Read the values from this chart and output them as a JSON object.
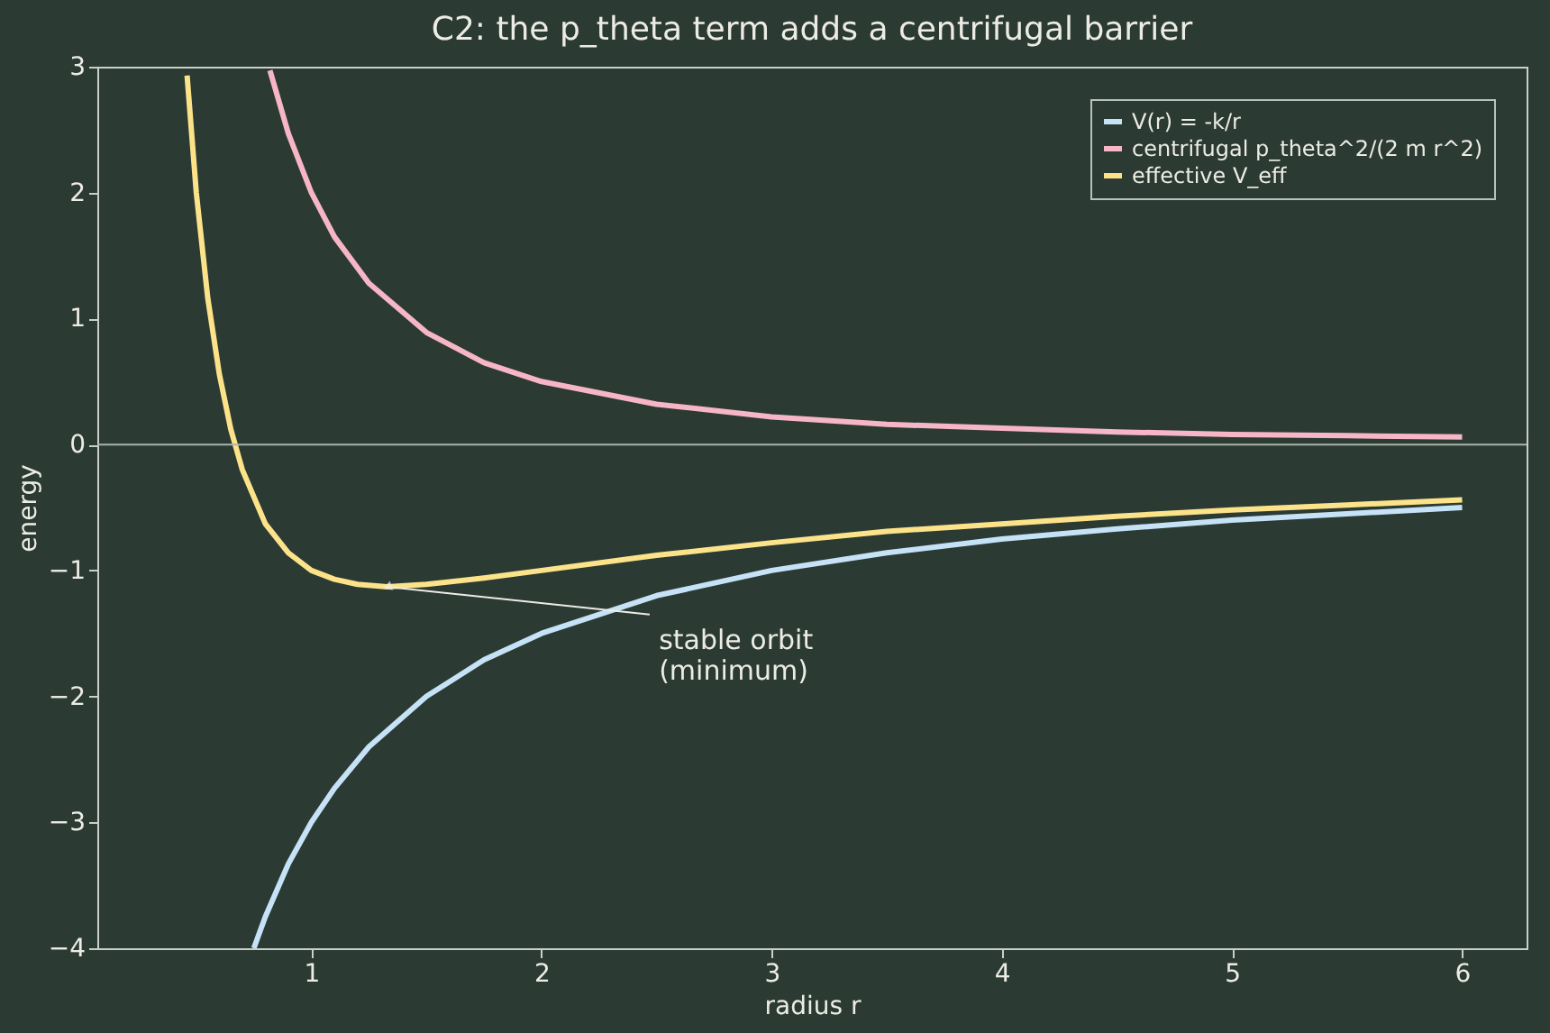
{
  "chart_data": {
    "type": "line",
    "title": "C2: the p_theta term adds a centrifugal barrier",
    "xlabel": "radius  r",
    "ylabel": "energy",
    "xlim": [
      0.07,
      6.28
    ],
    "xticks": [
      1,
      2,
      3,
      4,
      5,
      6
    ],
    "ylim": [
      -4,
      3
    ],
    "yticks": [
      -4,
      -3,
      -2,
      -1,
      0,
      1,
      2,
      3
    ],
    "grid": false,
    "legend": "top right",
    "line_style": "solid",
    "marker": "none",
    "series": [
      {
        "name": "V(r) = -k/r",
        "color": "#c6e2f7",
        "x": [
          0.75,
          0.8,
          0.9,
          1,
          1.1,
          1.25,
          1.5,
          1.75,
          2,
          2.5,
          3,
          3.5,
          4,
          4.5,
          5,
          5.5,
          6
        ],
        "values": [
          -4,
          -3.75,
          -3.33,
          -3,
          -2.73,
          -2.4,
          -2,
          -1.71,
          -1.5,
          -1.2,
          -1,
          -0.86,
          -0.75,
          -0.67,
          -0.6,
          -0.55,
          -0.5
        ]
      },
      {
        "name": "centrifugal p_theta^2/(2 m r^2)",
        "color": "#f7b6c8",
        "x": [
          0.82,
          0.9,
          1,
          1.1,
          1.25,
          1.5,
          1.75,
          2,
          2.5,
          3,
          3.5,
          4,
          4.5,
          5,
          5.5,
          6
        ],
        "values": [
          2.97,
          2.47,
          2,
          1.65,
          1.28,
          0.89,
          0.65,
          0.5,
          0.32,
          0.22,
          0.16,
          0.13,
          0.1,
          0.08,
          0.07,
          0.06
        ]
      },
      {
        "name": "effective V_eff",
        "color": "#fce38a",
        "x": [
          0.46,
          0.5,
          0.55,
          0.6,
          0.65,
          0.7,
          0.8,
          0.9,
          1,
          1.1,
          1.2,
          1.33,
          1.5,
          1.75,
          2,
          2.5,
          3,
          3.5,
          4,
          4.5,
          5,
          5.5,
          6
        ],
        "values": [
          2.93,
          2,
          1.16,
          0.56,
          0.12,
          -0.2,
          -0.63,
          -0.86,
          -1,
          -1.07,
          -1.11,
          -1.13,
          -1.11,
          -1.06,
          -1,
          -0.88,
          -0.78,
          -0.69,
          -0.63,
          -0.57,
          -0.52,
          -0.48,
          -0.44
        ]
      }
    ],
    "ref_lines": [
      {
        "axis": "y",
        "value": 0,
        "color": "#a9b5ae"
      }
    ],
    "annotations": [
      {
        "text": "stable orbit\n(minimum)",
        "x": 1.33,
        "y": -1.13
      }
    ]
  }
}
